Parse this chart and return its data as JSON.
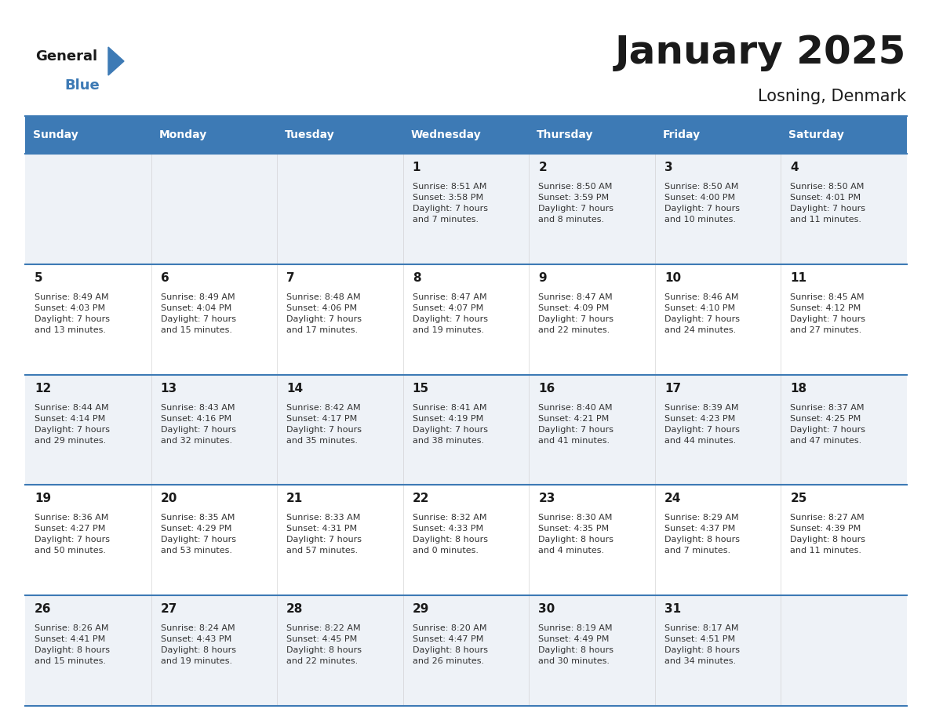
{
  "title": "January 2025",
  "subtitle": "Losning, Denmark",
  "logo_text_general": "General",
  "logo_text_blue": "Blue",
  "header_bg_color": "#3d7ab5",
  "header_text_color": "#ffffff",
  "row_bg_color_odd": "#eef2f7",
  "row_bg_color_even": "#ffffff",
  "separator_color": "#3d7ab5",
  "day_num_color": "#1a1a1a",
  "info_text_color": "#333333",
  "day_headers": [
    "Sunday",
    "Monday",
    "Tuesday",
    "Wednesday",
    "Thursday",
    "Friday",
    "Saturday"
  ],
  "weeks": [
    [
      {
        "day": "",
        "info": ""
      },
      {
        "day": "",
        "info": ""
      },
      {
        "day": "",
        "info": ""
      },
      {
        "day": "1",
        "info": "Sunrise: 8:51 AM\nSunset: 3:58 PM\nDaylight: 7 hours\nand 7 minutes."
      },
      {
        "day": "2",
        "info": "Sunrise: 8:50 AM\nSunset: 3:59 PM\nDaylight: 7 hours\nand 8 minutes."
      },
      {
        "day": "3",
        "info": "Sunrise: 8:50 AM\nSunset: 4:00 PM\nDaylight: 7 hours\nand 10 minutes."
      },
      {
        "day": "4",
        "info": "Sunrise: 8:50 AM\nSunset: 4:01 PM\nDaylight: 7 hours\nand 11 minutes."
      }
    ],
    [
      {
        "day": "5",
        "info": "Sunrise: 8:49 AM\nSunset: 4:03 PM\nDaylight: 7 hours\nand 13 minutes."
      },
      {
        "day": "6",
        "info": "Sunrise: 8:49 AM\nSunset: 4:04 PM\nDaylight: 7 hours\nand 15 minutes."
      },
      {
        "day": "7",
        "info": "Sunrise: 8:48 AM\nSunset: 4:06 PM\nDaylight: 7 hours\nand 17 minutes."
      },
      {
        "day": "8",
        "info": "Sunrise: 8:47 AM\nSunset: 4:07 PM\nDaylight: 7 hours\nand 19 minutes."
      },
      {
        "day": "9",
        "info": "Sunrise: 8:47 AM\nSunset: 4:09 PM\nDaylight: 7 hours\nand 22 minutes."
      },
      {
        "day": "10",
        "info": "Sunrise: 8:46 AM\nSunset: 4:10 PM\nDaylight: 7 hours\nand 24 minutes."
      },
      {
        "day": "11",
        "info": "Sunrise: 8:45 AM\nSunset: 4:12 PM\nDaylight: 7 hours\nand 27 minutes."
      }
    ],
    [
      {
        "day": "12",
        "info": "Sunrise: 8:44 AM\nSunset: 4:14 PM\nDaylight: 7 hours\nand 29 minutes."
      },
      {
        "day": "13",
        "info": "Sunrise: 8:43 AM\nSunset: 4:16 PM\nDaylight: 7 hours\nand 32 minutes."
      },
      {
        "day": "14",
        "info": "Sunrise: 8:42 AM\nSunset: 4:17 PM\nDaylight: 7 hours\nand 35 minutes."
      },
      {
        "day": "15",
        "info": "Sunrise: 8:41 AM\nSunset: 4:19 PM\nDaylight: 7 hours\nand 38 minutes."
      },
      {
        "day": "16",
        "info": "Sunrise: 8:40 AM\nSunset: 4:21 PM\nDaylight: 7 hours\nand 41 minutes."
      },
      {
        "day": "17",
        "info": "Sunrise: 8:39 AM\nSunset: 4:23 PM\nDaylight: 7 hours\nand 44 minutes."
      },
      {
        "day": "18",
        "info": "Sunrise: 8:37 AM\nSunset: 4:25 PM\nDaylight: 7 hours\nand 47 minutes."
      }
    ],
    [
      {
        "day": "19",
        "info": "Sunrise: 8:36 AM\nSunset: 4:27 PM\nDaylight: 7 hours\nand 50 minutes."
      },
      {
        "day": "20",
        "info": "Sunrise: 8:35 AM\nSunset: 4:29 PM\nDaylight: 7 hours\nand 53 minutes."
      },
      {
        "day": "21",
        "info": "Sunrise: 8:33 AM\nSunset: 4:31 PM\nDaylight: 7 hours\nand 57 minutes."
      },
      {
        "day": "22",
        "info": "Sunrise: 8:32 AM\nSunset: 4:33 PM\nDaylight: 8 hours\nand 0 minutes."
      },
      {
        "day": "23",
        "info": "Sunrise: 8:30 AM\nSunset: 4:35 PM\nDaylight: 8 hours\nand 4 minutes."
      },
      {
        "day": "24",
        "info": "Sunrise: 8:29 AM\nSunset: 4:37 PM\nDaylight: 8 hours\nand 7 minutes."
      },
      {
        "day": "25",
        "info": "Sunrise: 8:27 AM\nSunset: 4:39 PM\nDaylight: 8 hours\nand 11 minutes."
      }
    ],
    [
      {
        "day": "26",
        "info": "Sunrise: 8:26 AM\nSunset: 4:41 PM\nDaylight: 8 hours\nand 15 minutes."
      },
      {
        "day": "27",
        "info": "Sunrise: 8:24 AM\nSunset: 4:43 PM\nDaylight: 8 hours\nand 19 minutes."
      },
      {
        "day": "28",
        "info": "Sunrise: 8:22 AM\nSunset: 4:45 PM\nDaylight: 8 hours\nand 22 minutes."
      },
      {
        "day": "29",
        "info": "Sunrise: 8:20 AM\nSunset: 4:47 PM\nDaylight: 8 hours\nand 26 minutes."
      },
      {
        "day": "30",
        "info": "Sunrise: 8:19 AM\nSunset: 4:49 PM\nDaylight: 8 hours\nand 30 minutes."
      },
      {
        "day": "31",
        "info": "Sunrise: 8:17 AM\nSunset: 4:51 PM\nDaylight: 8 hours\nand 34 minutes."
      },
      {
        "day": "",
        "info": ""
      }
    ]
  ]
}
